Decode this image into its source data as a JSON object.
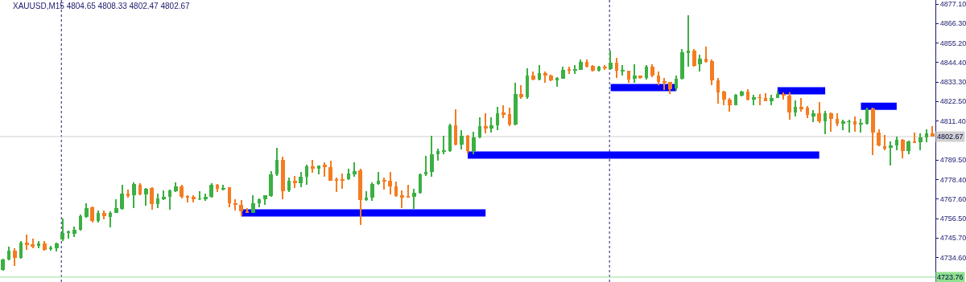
{
  "chart_data": {
    "type": "candlestick",
    "title": "XAUUSD,M15 4804.65 4808.33 4802.47 4802.67",
    "categories": [
      null,
      null,
      null,
      null,
      null,
      null,
      null,
      null,
      null,
      null,
      null,
      null,
      null,
      null,
      null,
      null,
      null,
      null,
      null,
      null,
      null,
      null,
      null,
      null,
      null,
      null,
      null,
      null,
      null,
      null,
      null,
      null,
      null,
      null,
      null,
      null,
      null,
      null,
      null,
      null,
      null,
      null,
      null,
      null,
      null,
      null,
      null,
      null,
      null,
      null,
      null,
      null,
      null,
      null,
      null,
      null,
      null,
      null,
      null,
      null,
      null,
      null,
      null,
      null,
      null,
      null,
      null,
      null,
      null,
      null,
      null,
      null,
      null,
      null,
      null,
      null,
      null,
      null,
      null,
      null,
      null,
      null,
      null,
      null,
      null,
      null,
      null,
      null,
      null,
      null,
      null,
      null,
      null,
      null,
      null,
      null,
      null,
      null,
      null,
      null,
      null,
      null,
      null,
      null,
      null,
      null,
      null,
      null,
      null,
      null,
      null,
      null,
      null,
      null,
      null,
      null,
      null,
      null,
      null,
      null,
      null,
      null,
      null,
      null,
      null,
      null,
      null,
      null,
      null,
      null,
      null,
      null,
      null,
      null,
      null,
      null,
      null,
      null,
      null,
      null,
      null,
      null,
      null,
      null,
      null,
      null,
      null,
      null,
      null,
      null,
      null,
      null,
      null,
      null,
      null,
      null,
      null
    ],
    "ohlc": [
      [
        4727.6,
        4734.1,
        4727.1,
        4733.7
      ],
      [
        4733.7,
        4740.7,
        4733.3,
        4738.5
      ],
      [
        4738.5,
        4739.8,
        4730.2,
        4734.6
      ],
      [
        4734.6,
        4743.8,
        4734.1,
        4743.3
      ],
      [
        4743.3,
        4747.7,
        4739.0,
        4741.6
      ],
      [
        4742.0,
        4745.5,
        4739.8,
        4741.2
      ],
      [
        4741.2,
        4744.2,
        4739.8,
        4742.5
      ],
      [
        4742.5,
        4743.8,
        4738.5,
        4739.0
      ],
      [
        4739.4,
        4741.2,
        4738.5,
        4740.3
      ],
      [
        4739.8,
        4742.9,
        4738.1,
        4742.5
      ],
      [
        4744.7,
        4756.5,
        4744.2,
        4748.6
      ],
      [
        4748.6,
        4749.9,
        4745.5,
        4749.1
      ],
      [
        4748.2,
        4752.1,
        4746.4,
        4750.4
      ],
      [
        4750.4,
        4758.7,
        4749.9,
        4757.8
      ],
      [
        4757.4,
        4765.3,
        4756.9,
        4762.6
      ],
      [
        4763.1,
        4763.5,
        4754.3,
        4755.2
      ],
      [
        4755.2,
        4761.3,
        4754.3,
        4759.6
      ],
      [
        4759.6,
        4761.3,
        4756.1,
        4757.8
      ],
      [
        4757.4,
        4760.9,
        4751.7,
        4760.0
      ],
      [
        4760.0,
        4767.5,
        4759.6,
        4762.6
      ],
      [
        4762.2,
        4775.8,
        4761.8,
        4770.5
      ],
      [
        4770.5,
        4772.7,
        4768.3,
        4769.2
      ],
      [
        4769.7,
        4777.1,
        4762.6,
        4776.2
      ],
      [
        4775.8,
        4776.7,
        4769.7,
        4770.1
      ],
      [
        4770.1,
        4773.6,
        4764.0,
        4773.2
      ],
      [
        4773.6,
        4774.1,
        4761.8,
        4764.8
      ],
      [
        4764.8,
        4770.5,
        4762.6,
        4767.9
      ],
      [
        4767.9,
        4772.3,
        4767.0,
        4768.8
      ],
      [
        4768.8,
        4772.7,
        4761.8,
        4772.3
      ],
      [
        4771.9,
        4777.1,
        4771.4,
        4774.9
      ],
      [
        4774.9,
        4775.4,
        4767.9,
        4768.8
      ],
      [
        4769.2,
        4769.7,
        4765.7,
        4768.3
      ],
      [
        4768.8,
        4769.7,
        4765.7,
        4767.5
      ],
      [
        4767.5,
        4771.9,
        4767.0,
        4767.9
      ],
      [
        4767.9,
        4770.5,
        4766.6,
        4768.8
      ],
      [
        4768.8,
        4776.7,
        4768.3,
        4775.8
      ],
      [
        4775.8,
        4776.2,
        4771.4,
        4773.2
      ],
      [
        4773.2,
        4775.8,
        4772.3,
        4773.6
      ],
      [
        4774.1,
        4774.1,
        4763.1,
        4765.3
      ],
      [
        4765.3,
        4767.5,
        4761.3,
        4764.4
      ],
      [
        4764.4,
        4767.0,
        4757.8,
        4760.9
      ],
      [
        4760.9,
        4762.6,
        4759.6,
        4760.0
      ],
      [
        4760.0,
        4769.7,
        4760.0,
        4765.3
      ],
      [
        4765.3,
        4767.9,
        4763.1,
        4767.5
      ],
      [
        4767.5,
        4769.7,
        4764.4,
        4769.7
      ],
      [
        4769.2,
        4783.3,
        4768.8,
        4781.5
      ],
      [
        4781.5,
        4796.4,
        4780.6,
        4789.4
      ],
      [
        4789.4,
        4791.2,
        4767.5,
        4771.9
      ],
      [
        4772.3,
        4779.8,
        4771.4,
        4778.0
      ],
      [
        4778.0,
        4780.6,
        4773.6,
        4776.7
      ],
      [
        4776.7,
        4782.8,
        4774.1,
        4780.2
      ],
      [
        4780.2,
        4786.8,
        4775.8,
        4785.9
      ],
      [
        4785.9,
        4789.8,
        4782.4,
        4784.6
      ],
      [
        4784.6,
        4786.3,
        4781.5,
        4786.3
      ],
      [
        4786.8,
        4788.1,
        4780.2,
        4785.5
      ],
      [
        4785.5,
        4789.0,
        4778.0,
        4778.0
      ],
      [
        4778.9,
        4779.8,
        4771.4,
        4778.0
      ],
      [
        4778.4,
        4781.9,
        4773.2,
        4778.0
      ],
      [
        4778.9,
        4784.6,
        4778.4,
        4781.9
      ],
      [
        4781.5,
        4788.1,
        4780.2,
        4783.3
      ],
      [
        4783.7,
        4784.6,
        4753.0,
        4767.0
      ],
      [
        4767.0,
        4771.9,
        4766.6,
        4768.3
      ],
      [
        4768.3,
        4777.1,
        4766.6,
        4776.2
      ],
      [
        4776.2,
        4782.8,
        4775.8,
        4778.0
      ],
      [
        4778.0,
        4779.8,
        4772.7,
        4777.6
      ],
      [
        4778.0,
        4782.8,
        4770.1,
        4774.5
      ],
      [
        4774.9,
        4777.6,
        4768.8,
        4769.2
      ],
      [
        4769.7,
        4772.3,
        4762.6,
        4768.8
      ],
      [
        4769.1,
        4775.8,
        4768.3,
        4768.6
      ],
      [
        4768.8,
        4773.2,
        4762.2,
        4771.0
      ],
      [
        4771.0,
        4781.9,
        4770.5,
        4781.5
      ],
      [
        4781.5,
        4792.0,
        4780.6,
        4782.8
      ],
      [
        4782.8,
        4803.0,
        4780.2,
        4792.9
      ],
      [
        4792.9,
        4796.0,
        4789.0,
        4794.7
      ],
      [
        4794.2,
        4803.0,
        4792.9,
        4794.7
      ],
      [
        4794.7,
        4810.0,
        4794.2,
        4809.1
      ],
      [
        4809.1,
        4817.9,
        4797.7,
        4798.2
      ],
      [
        4798.2,
        4806.5,
        4795.5,
        4803.0
      ],
      [
        4803.0,
        4803.4,
        4793.4,
        4794.7
      ],
      [
        4794.7,
        4805.6,
        4792.9,
        4802.1
      ],
      [
        4802.1,
        4813.5,
        4801.7,
        4808.7
      ],
      [
        4808.7,
        4815.7,
        4804.3,
        4807.4
      ],
      [
        4807.4,
        4813.5,
        4804.8,
        4809.1
      ],
      [
        4809.1,
        4819.2,
        4806.5,
        4815.7
      ],
      [
        4816.2,
        4820.1,
        4813.1,
        4814.8
      ],
      [
        4815.3,
        4818.8,
        4808.7,
        4809.6
      ],
      [
        4809.6,
        4832.8,
        4809.1,
        4826.7
      ],
      [
        4826.7,
        4831.5,
        4824.1,
        4824.9
      ],
      [
        4824.9,
        4841.2,
        4824.1,
        4836.8
      ],
      [
        4836.8,
        4839.4,
        4834.1,
        4834.6
      ],
      [
        4834.6,
        4842.9,
        4834.1,
        4838.5
      ],
      [
        4838.5,
        4839.4,
        4832.8,
        4837.2
      ],
      [
        4837.2,
        4837.6,
        4833.7,
        4834.1
      ],
      [
        4834.1,
        4835.9,
        4830.6,
        4835.5
      ],
      [
        4835.0,
        4842.0,
        4835.0,
        4840.3
      ],
      [
        4840.3,
        4842.0,
        4838.1,
        4839.8
      ],
      [
        4839.8,
        4842.9,
        4838.1,
        4840.7
      ],
      [
        4840.3,
        4846.0,
        4840.3,
        4844.7
      ],
      [
        4844.7,
        4846.0,
        4841.6,
        4842.0
      ],
      [
        4842.5,
        4842.9,
        4839.4,
        4839.8
      ],
      [
        4839.8,
        4842.5,
        4839.4,
        4842.0
      ],
      [
        4842.0,
        4842.9,
        4840.3,
        4841.2
      ],
      [
        4840.7,
        4850.8,
        4840.3,
        4844.2
      ],
      [
        4844.2,
        4846.9,
        4835.5,
        4839.8
      ],
      [
        4839.6,
        4842.9,
        4837.2,
        4839.8
      ],
      [
        4839.8,
        4839.8,
        4832.8,
        4834.6
      ],
      [
        4835.0,
        4843.4,
        4832.8,
        4836.8
      ],
      [
        4836.8,
        4837.2,
        4835.0,
        4835.5
      ],
      [
        4835.5,
        4842.9,
        4834.6,
        4842.0
      ],
      [
        4842.0,
        4843.4,
        4836.3,
        4837.2
      ],
      [
        4836.8,
        4839.4,
        4831.5,
        4833.3
      ],
      [
        4833.7,
        4835.5,
        4828.9,
        4833.3
      ],
      [
        4833.3,
        4833.3,
        4826.7,
        4829.3
      ],
      [
        4829.8,
        4837.2,
        4828.4,
        4835.0
      ],
      [
        4835.0,
        4851.7,
        4834.6,
        4849.9
      ],
      [
        4849.9,
        4871.0,
        4842.0,
        4850.8
      ],
      [
        4850.8,
        4851.7,
        4842.0,
        4842.5
      ],
      [
        4843.4,
        4848.6,
        4839.4,
        4846.4
      ],
      [
        4846.4,
        4853.4,
        4844.2,
        4844.7
      ],
      [
        4845.1,
        4846.0,
        4831.5,
        4834.1
      ],
      [
        4834.1,
        4835.5,
        4821.4,
        4827.6
      ],
      [
        4828.0,
        4828.4,
        4820.1,
        4823.6
      ],
      [
        4823.6,
        4824.5,
        4816.6,
        4820.5
      ],
      [
        4820.5,
        4826.7,
        4820.1,
        4826.2
      ],
      [
        4825.8,
        4828.4,
        4825.4,
        4828.0
      ],
      [
        4828.0,
        4829.3,
        4823.2,
        4823.6
      ],
      [
        4823.6,
        4826.2,
        4820.1,
        4824.9
      ],
      [
        4824.7,
        4826.7,
        4820.5,
        4824.5
      ],
      [
        4824.5,
        4827.1,
        4822.6,
        4822.7
      ],
      [
        4822.7,
        4826.2,
        4820.5,
        4824.5
      ],
      [
        4824.5,
        4828.4,
        4824.4,
        4826.7
      ],
      [
        4826.7,
        4827.6,
        4823.6,
        4825.8
      ],
      [
        4825.8,
        4827.6,
        4812.2,
        4816.2
      ],
      [
        4816.2,
        4823.2,
        4814.0,
        4819.2
      ],
      [
        4819.2,
        4824.5,
        4816.6,
        4818.4
      ],
      [
        4818.8,
        4819.7,
        4813.1,
        4814.8
      ],
      [
        4814.0,
        4817.5,
        4810.9,
        4815.7
      ],
      [
        4815.7,
        4821.9,
        4810.5,
        4811.3
      ],
      [
        4811.3,
        4817.0,
        4803.9,
        4815.7
      ],
      [
        4815.7,
        4816.2,
        4805.2,
        4812.6
      ],
      [
        4812.6,
        4815.7,
        4808.7,
        4810.0
      ],
      [
        4810.0,
        4812.2,
        4806.1,
        4811.3
      ],
      [
        4810.9,
        4812.2,
        4804.8,
        4811.1
      ],
      [
        4811.3,
        4814.0,
        4805.6,
        4809.6
      ],
      [
        4809.8,
        4812.6,
        4804.8,
        4810.0
      ],
      [
        4810.0,
        4818.8,
        4809.6,
        4817.9
      ],
      [
        4818.4,
        4818.8,
        4792.5,
        4804.8
      ],
      [
        4804.8,
        4806.9,
        4797.3,
        4797.7
      ],
      [
        4797.3,
        4803.4,
        4795.1,
        4796.0
      ],
      [
        4796.2,
        4799.9,
        4786.3,
        4797.7
      ],
      [
        4797.7,
        4802.6,
        4795.1,
        4800.8
      ],
      [
        4800.8,
        4801.2,
        4790.3,
        4794.7
      ],
      [
        4794.7,
        4800.4,
        4792.9,
        4799.9
      ],
      [
        4799.9,
        4804.8,
        4799.1,
        4799.5
      ],
      [
        4799.5,
        4804.3,
        4795.1,
        4802.1
      ],
      [
        4802.1,
        4806.9,
        4799.5,
        4804.3
      ],
      [
        4804.65,
        4808.33,
        4802.47,
        4802.67
      ]
    ],
    "colors": [
      "#3cb043",
      "#3cb043",
      "#f57c20",
      "#3cb043",
      "#f57c20",
      "#f57c20",
      "#3cb043",
      "#f57c20",
      "#3cb043",
      "#3cb043",
      "#3cb043",
      "#3cb043",
      "#3cb043",
      "#3cb043",
      "#3cb043",
      "#f57c20",
      "#3cb043",
      "#f57c20",
      "#3cb043",
      "#3cb043",
      "#3cb043",
      "#f57c20",
      "#3cb043",
      "#f57c20",
      "#3cb043",
      "#f57c20",
      "#3cb043",
      "#3cb043",
      "#3cb043",
      "#3cb043",
      "#f57c20",
      "#f57c20",
      "#f57c20",
      "#3cb043",
      "#3cb043",
      "#3cb043",
      "#f57c20",
      "#3cb043",
      "#f57c20",
      "#f57c20",
      "#f57c20",
      "#f57c20",
      "#3cb043",
      "#3cb043",
      "#3cb043",
      "#3cb043",
      "#3cb043",
      "#f57c20",
      "#3cb043",
      "#f57c20",
      "#3cb043",
      "#3cb043",
      "#f57c20",
      "#3cb043",
      "#f57c20",
      "#f57c20",
      "#f57c20",
      "#f57c20",
      "#3cb043",
      "#3cb043",
      "#f57c20",
      "#3cb043",
      "#3cb043",
      "#3cb043",
      "#f57c20",
      "#f57c20",
      "#f57c20",
      "#f57c20",
      "#f57c20",
      "#3cb043",
      "#3cb043",
      "#3cb043",
      "#3cb043",
      "#3cb043",
      "#3cb043",
      "#3cb043",
      "#f57c20",
      "#3cb043",
      "#f57c20",
      "#3cb043",
      "#3cb043",
      "#f57c20",
      "#3cb043",
      "#3cb043",
      "#f57c20",
      "#f57c20",
      "#3cb043",
      "#f57c20",
      "#3cb043",
      "#f57c20",
      "#3cb043",
      "#f57c20",
      "#f57c20",
      "#3cb043",
      "#3cb043",
      "#f57c20",
      "#3cb043",
      "#3cb043",
      "#f57c20",
      "#f57c20",
      "#3cb043",
      "#f57c20",
      "#3cb043",
      "#f57c20",
      "#3cb043",
      "#f57c20",
      "#3cb043",
      "#f57c20",
      "#3cb043",
      "#f57c20",
      "#f57c20",
      "#f57c20",
      "#f57c20",
      "#3cb043",
      "#3cb043",
      "#3cb043",
      "#f57c20",
      "#3cb043",
      "#f57c20",
      "#f57c20",
      "#f57c20",
      "#f57c20",
      "#f57c20",
      "#3cb043",
      "#3cb043",
      "#f57c20",
      "#3cb043",
      "#f57c20",
      "#f57c20",
      "#3cb043",
      "#3cb043",
      "#f57c20",
      "#f57c20",
      "#3cb043",
      "#f57c20",
      "#f57c20",
      "#3cb043",
      "#f57c20",
      "#3cb043",
      "#f57c20",
      "#f57c20",
      "#3cb043",
      "#3cb043",
      "#f57c20",
      "#3cb043",
      "#3cb043",
      "#f57c20",
      "#f57c20",
      "#f57c20",
      "#3cb043",
      "#3cb043",
      "#f57c20",
      "#3cb043",
      "#f57c20",
      "#3cb043",
      "#3cb043",
      "#f57c20"
    ],
    "series": [
      {
        "type": "line",
        "color": "#0000ff",
        "values": [
          null,
          null,
          null,
          null,
          null,
          null,
          null,
          null,
          null,
          null,
          null,
          null,
          null,
          null,
          null,
          null,
          null,
          null,
          null,
          null,
          null,
          null,
          null,
          null,
          null,
          null,
          null,
          null,
          null,
          null,
          null,
          null,
          null,
          null,
          null,
          null,
          null,
          null,
          null,
          null,
          4759.8,
          4759.8,
          4759.8,
          4759.8,
          4759.8,
          4759.8,
          4759.8,
          4759.8,
          4759.8,
          4759.8,
          4759.8,
          4759.8,
          4759.8,
          4759.8,
          4759.8,
          4759.8,
          4759.8,
          4759.8,
          4759.8,
          4759.8,
          4759.8,
          4759.8,
          4759.8,
          4759.8,
          4759.8,
          4759.8,
          4759.8,
          4759.8,
          4759.8,
          4759.8,
          4759.8,
          4759.8,
          4759.8,
          4759.8,
          4759.8,
          4759.8,
          4759.8,
          4759.8,
          4759.8,
          4759.8,
          4759.8,
          4759.8,
          null,
          null,
          null,
          null,
          null,
          null,
          null,
          null,
          null,
          null,
          null,
          null,
          null,
          null,
          null,
          null,
          null,
          null,
          null,
          null,
          null,
          null,
          null,
          null,
          null,
          null,
          null,
          null,
          null,
          null,
          null,
          null,
          null,
          null,
          null,
          null,
          null,
          null,
          null,
          null,
          null,
          null,
          null,
          null,
          null,
          null,
          null,
          null,
          null,
          null,
          null,
          null,
          null,
          null,
          null,
          null,
          null,
          null,
          null,
          null,
          null,
          null,
          null,
          null,
          null,
          null,
          null,
          null,
          null,
          null,
          null,
          null,
          null,
          null,
          null
        ]
      },
      {
        "type": "line",
        "color": "#0000ff",
        "values": [
          null,
          null,
          null,
          null,
          null,
          null,
          null,
          null,
          null,
          null,
          null,
          null,
          null,
          null,
          null,
          null,
          null,
          null,
          null,
          null,
          null,
          null,
          null,
          null,
          null,
          null,
          null,
          null,
          null,
          null,
          null,
          null,
          null,
          null,
          null,
          null,
          null,
          null,
          null,
          null,
          null,
          null,
          null,
          null,
          null,
          null,
          null,
          null,
          null,
          null,
          null,
          null,
          null,
          null,
          null,
          null,
          null,
          null,
          null,
          null,
          null,
          null,
          null,
          null,
          null,
          null,
          null,
          null,
          null,
          null,
          null,
          null,
          null,
          null,
          null,
          null,
          null,
          null,
          4792.3,
          4792.3,
          4792.3,
          4792.3,
          4792.3,
          4792.3,
          4792.3,
          4792.3,
          4792.3,
          4792.3,
          4792.3,
          4792.3,
          4792.3,
          4792.3,
          4792.3,
          4792.3,
          4792.3,
          4792.3,
          4792.3,
          4792.3,
          4792.3,
          4792.3,
          4792.3,
          4792.3,
          4792.3,
          4792.3,
          4792.3,
          4792.3,
          4792.3,
          4792.3,
          4792.3,
          4792.3,
          4792.3,
          4792.3,
          4792.3,
          4792.3,
          4792.3,
          4792.3,
          4792.3,
          4792.3,
          4792.3,
          4792.3,
          4792.3,
          4792.3,
          4792.3,
          4792.3,
          4792.3,
          4792.3,
          4792.3,
          4792.3,
          4792.3,
          4792.3,
          4792.3,
          4792.3,
          4792.3,
          4792.3,
          4792.3,
          4792.3,
          4792.3,
          4792.3,
          null,
          null,
          null,
          null,
          null,
          null,
          null,
          null,
          null,
          null,
          null,
          null,
          null,
          null,
          null,
          null,
          null,
          null,
          null
        ]
      },
      {
        "type": "line",
        "color": "#0000ff",
        "values": [
          null,
          null,
          null,
          null,
          null,
          null,
          null,
          null,
          null,
          null,
          null,
          null,
          null,
          null,
          null,
          null,
          null,
          null,
          null,
          null,
          null,
          null,
          null,
          null,
          null,
          null,
          null,
          null,
          null,
          null,
          null,
          null,
          null,
          null,
          null,
          null,
          null,
          null,
          null,
          null,
          null,
          null,
          null,
          null,
          null,
          null,
          null,
          null,
          null,
          null,
          null,
          null,
          null,
          null,
          null,
          null,
          null,
          null,
          null,
          null,
          null,
          null,
          null,
          null,
          null,
          null,
          null,
          null,
          null,
          null,
          null,
          null,
          null,
          null,
          null,
          null,
          null,
          null,
          null,
          null,
          null,
          null,
          null,
          null,
          null,
          null,
          null,
          null,
          null,
          null,
          null,
          null,
          null,
          null,
          null,
          null,
          null,
          null,
          null,
          null,
          null,
          null,
          4830.2,
          4830.2,
          4830.2,
          4830.2,
          4830.2,
          4830.2,
          4830.2,
          4830.2,
          4830.2,
          4830.2,
          4830.2,
          4830.2,
          null,
          null,
          null,
          null,
          null,
          null,
          null,
          null,
          null,
          null,
          null,
          null,
          null,
          null,
          null,
          null,
          null,
          null,
          null,
          null,
          null,
          null,
          null,
          null,
          null,
          null,
          null,
          null,
          null,
          null,
          null,
          null,
          null,
          null,
          null,
          null,
          null,
          null,
          null,
          null,
          null,
          null,
          null
        ]
      },
      {
        "type": "line",
        "color": "#0000ff",
        "values": [
          null,
          null,
          null,
          null,
          null,
          null,
          null,
          null,
          null,
          null,
          null,
          null,
          null,
          null,
          null,
          null,
          null,
          null,
          null,
          null,
          null,
          null,
          null,
          null,
          null,
          null,
          null,
          null,
          null,
          null,
          null,
          null,
          null,
          null,
          null,
          null,
          null,
          null,
          null,
          null,
          null,
          null,
          null,
          null,
          null,
          null,
          null,
          null,
          null,
          null,
          null,
          null,
          null,
          null,
          null,
          null,
          null,
          null,
          null,
          null,
          null,
          null,
          null,
          null,
          null,
          null,
          null,
          null,
          null,
          null,
          null,
          null,
          null,
          null,
          null,
          null,
          null,
          null,
          null,
          null,
          null,
          null,
          null,
          null,
          null,
          null,
          null,
          null,
          null,
          null,
          null,
          null,
          null,
          null,
          null,
          null,
          null,
          null,
          null,
          null,
          null,
          null,
          null,
          null,
          null,
          null,
          null,
          null,
          null,
          null,
          null,
          null,
          null,
          null,
          null,
          null,
          null,
          null,
          null,
          null,
          null,
          null,
          null,
          null,
          null,
          null,
          null,
          null,
          null,
          null,
          4828.4,
          4828.4,
          4828.4,
          4828.4,
          4828.4,
          4828.4,
          4828.4,
          4828.4,
          4828.4,
          null,
          null,
          null,
          null,
          null,
          null,
          null,
          null,
          null,
          null,
          null,
          null,
          null,
          null,
          null,
          null,
          null,
          null
        ]
      },
      {
        "type": "line",
        "color": "#0000ff",
        "values": [
          null,
          null,
          null,
          null,
          null,
          null,
          null,
          null,
          null,
          null,
          null,
          null,
          null,
          null,
          null,
          null,
          null,
          null,
          null,
          null,
          null,
          null,
          null,
          null,
          null,
          null,
          null,
          null,
          null,
          null,
          null,
          null,
          null,
          null,
          null,
          null,
          null,
          null,
          null,
          null,
          null,
          null,
          null,
          null,
          null,
          null,
          null,
          null,
          null,
          null,
          null,
          null,
          null,
          null,
          null,
          null,
          null,
          null,
          null,
          null,
          null,
          null,
          null,
          null,
          null,
          null,
          null,
          null,
          null,
          null,
          null,
          null,
          null,
          null,
          null,
          null,
          null,
          null,
          null,
          null,
          null,
          null,
          null,
          null,
          null,
          null,
          null,
          null,
          null,
          null,
          null,
          null,
          null,
          null,
          null,
          null,
          null,
          null,
          null,
          null,
          null,
          null,
          null,
          null,
          null,
          null,
          null,
          null,
          null,
          null,
          null,
          null,
          null,
          null,
          null,
          null,
          null,
          null,
          null,
          null,
          null,
          null,
          null,
          null,
          null,
          null,
          null,
          null,
          null,
          null,
          null,
          null,
          null,
          null,
          null,
          null,
          null,
          null,
          null,
          null,
          null,
          null,
          null,
          null,
          4819.7,
          4819.7,
          4819.7,
          4819.7,
          4819.7,
          4819.7,
          4819.7,
          null,
          null,
          null,
          null,
          null,
          null
        ]
      }
    ],
    "ref_lines": [
      {
        "axis": "y",
        "value": 4802.67,
        "label": "4802.67",
        "color": "#d0d0d0"
      },
      {
        "axis": "y",
        "value": 4723.76,
        "label": "4723.76",
        "color": "#8fe08f"
      }
    ],
    "ylim": [
      4721.0,
      4879.4
    ],
    "yticks": [
      {
        "value": 4877.1,
        "label": "4877.10"
      },
      {
        "value": 4866.3,
        "label": "4866.30"
      },
      {
        "value": 4855.2,
        "label": "4855.20"
      },
      {
        "value": 4844.4,
        "label": "4844.40"
      },
      {
        "value": 4833.3,
        "label": "4833.30"
      },
      {
        "value": 4822.5,
        "label": "4822.50"
      },
      {
        "value": 4811.4,
        "label": "4811.40"
      },
      {
        "value": 4789.5,
        "label": "4789.50"
      },
      {
        "value": 4778.4,
        "label": "4778.40"
      },
      {
        "value": 4767.6,
        "label": "4767.60"
      },
      {
        "value": 4756.5,
        "label": "4756.50"
      },
      {
        "value": 4745.7,
        "label": "4745.70"
      },
      {
        "value": 4734.6,
        "label": "4734.60"
      }
    ],
    "tick_labels": "y",
    "grid": false
  }
}
